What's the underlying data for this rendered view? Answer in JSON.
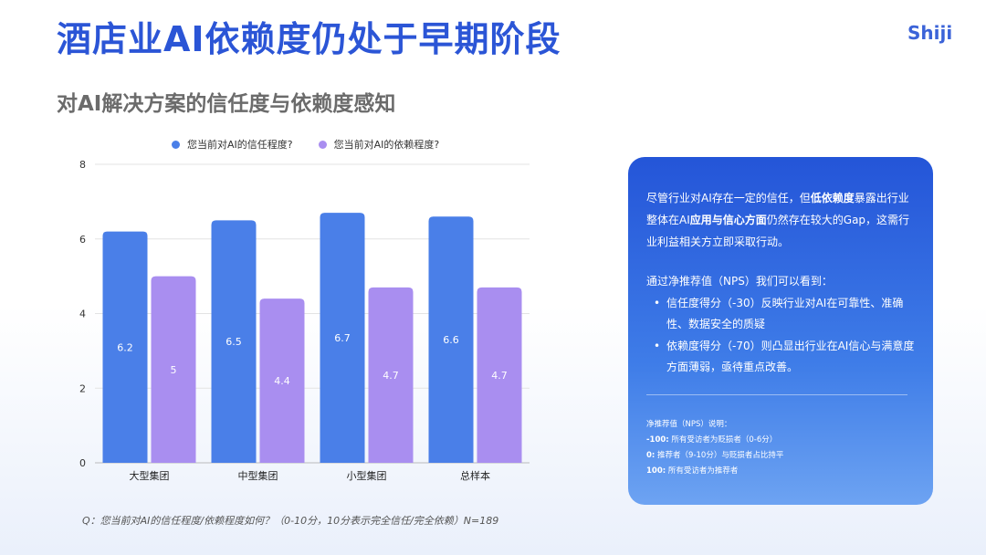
{
  "header": {
    "title": "酒店业AI依赖度仍处于早期阶段",
    "subtitle": "对AI解决方案的信任度与依赖度感知",
    "logo": "Shiji"
  },
  "legend": {
    "trust": "您当前对AI的信任程度?",
    "reliance": "您当前对AI的依赖程度?"
  },
  "chart_data": {
    "type": "bar",
    "categories": [
      "大型集团",
      "中型集团",
      "小型集团",
      "总样本"
    ],
    "series": [
      {
        "name": "您当前对AI的信任程度?",
        "values": [
          6.2,
          6.5,
          6.7,
          6.6
        ],
        "color": "#4a7fe8"
      },
      {
        "name": "您当前对AI的依赖程度?",
        "values": [
          5,
          4.4,
          4.7,
          4.7
        ],
        "color": "#a98ef0"
      }
    ],
    "ylim": [
      0,
      8
    ],
    "yticks": [
      0,
      2,
      4,
      6,
      8
    ],
    "grid": true,
    "legend_position": "top"
  },
  "footnote": "Q：您当前对AI的信任程度/依赖程度如何？（0-10分，10分表示完全信任/完全依赖）N=189",
  "panel": {
    "p1_a": "尽管行业对AI存在一定的信任，但",
    "p1_b": "低依赖度",
    "p1_c": "暴露出行业整体在AI",
    "p1_d": "应用与信心方面",
    "p1_e": "仍然存在较大的Gap，这需行业利益相关方立即采取行动。",
    "p2": "通过净推荐值（NPS）我们可以看到：",
    "bullet1": "信任度得分（-30）反映行业对AI在可靠性、准确性、数据安全的质疑",
    "bullet2": "依赖度得分（-70）则凸显出行业在AI信心与满意度方面薄弱，亟待重点改善。",
    "nps_title": "净推荐值（NPS）说明：",
    "nps1_key": "-100:",
    "nps1_val": "所有受访者为贬损者（0-6分）",
    "nps2_key": "0:",
    "nps2_val": "推荐者（9-10分）与贬损者占比持平",
    "nps3_key": "100:",
    "nps3_val": "所有受访者为推荐者"
  }
}
